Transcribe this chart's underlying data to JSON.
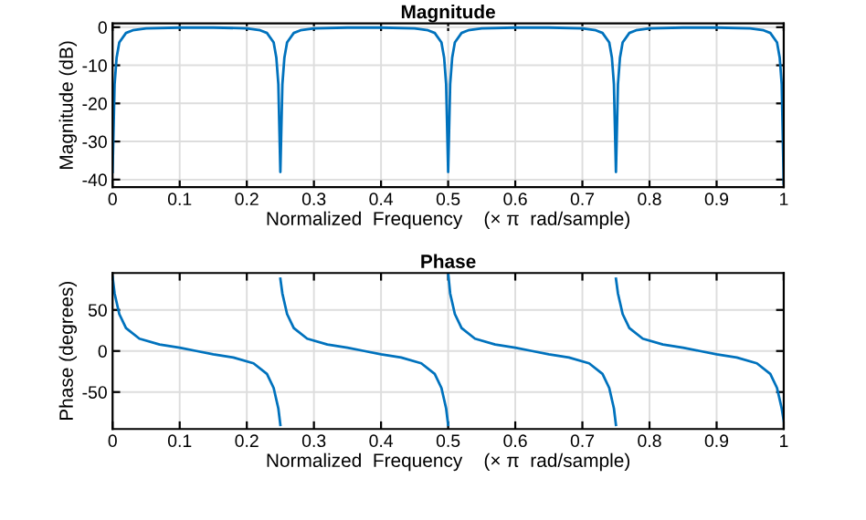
{
  "chart_data": [
    {
      "type": "line",
      "title": "Magnitude",
      "xlabel": "Normalized  Frequency    (× π  rad/sample)",
      "ylabel": "Magnitude (dB)",
      "grid": true,
      "xlim": [
        0,
        1
      ],
      "ylim": [
        -42,
        1
      ],
      "xticks": [
        0,
        0.1,
        0.2,
        0.3,
        0.4,
        0.5,
        0.6,
        0.7,
        0.8,
        0.9,
        1
      ],
      "yticks": [
        -40,
        -30,
        -20,
        -10,
        0
      ],
      "series": [
        {
          "color": "#0072bd",
          "x": [
            0,
            0.003,
            0.006,
            0.01,
            0.02,
            0.03,
            0.05,
            0.1,
            0.15,
            0.2,
            0.22,
            0.23,
            0.24,
            0.244,
            0.247,
            0.25,
            0.253,
            0.256,
            0.26,
            0.27,
            0.28,
            0.3,
            0.35,
            0.4,
            0.45,
            0.47,
            0.48,
            0.49,
            0.494,
            0.497,
            0.5,
            0.503,
            0.506,
            0.51,
            0.52,
            0.53,
            0.55,
            0.6,
            0.65,
            0.7,
            0.72,
            0.73,
            0.74,
            0.744,
            0.747,
            0.75,
            0.753,
            0.756,
            0.76,
            0.77,
            0.78,
            0.8,
            0.85,
            0.9,
            0.95,
            0.97,
            0.98,
            0.99,
            0.994,
            0.997,
            1
          ],
          "values": [
            -38,
            -15,
            -8,
            -4,
            -1.5,
            -0.8,
            -0.3,
            -0.1,
            -0.1,
            -0.3,
            -0.8,
            -1.5,
            -4,
            -8,
            -15,
            -38,
            -15,
            -8,
            -4,
            -1.5,
            -0.8,
            -0.3,
            -0.1,
            -0.1,
            -0.3,
            -0.8,
            -1.5,
            -4,
            -8,
            -15,
            -38,
            -15,
            -8,
            -4,
            -1.5,
            -0.8,
            -0.3,
            -0.1,
            -0.1,
            -0.3,
            -0.8,
            -1.5,
            -4,
            -8,
            -15,
            -38,
            -15,
            -8,
            -4,
            -1.5,
            -0.8,
            -0.3,
            -0.1,
            -0.1,
            -0.3,
            -0.8,
            -1.5,
            -4,
            -8,
            -15,
            -41
          ]
        }
      ]
    },
    {
      "type": "line",
      "title": "Phase",
      "xlabel": "Normalized  Frequency    (× π  rad/sample)",
      "ylabel": "Phase (degrees)",
      "grid": true,
      "xlim": [
        0,
        1
      ],
      "ylim": [
        -95,
        95
      ],
      "xticks": [
        0,
        0.1,
        0.2,
        0.3,
        0.4,
        0.5,
        0.6,
        0.7,
        0.8,
        0.9,
        1
      ],
      "yticks": [
        -50,
        0,
        50
      ],
      "series": [
        {
          "color": "#0072bd",
          "x": [
            0,
            0.003,
            0.01,
            0.02,
            0.04,
            0.07,
            0.1,
            0.125,
            0.15,
            0.18,
            0.21,
            0.23,
            0.24,
            0.247,
            0.25
          ],
          "values": [
            90,
            70,
            45,
            28,
            15,
            8,
            4,
            0,
            -4,
            -8,
            -15,
            -28,
            -45,
            -70,
            -90
          ]
        },
        {
          "color": "#0072bd",
          "x": [
            0.25,
            0.253,
            0.26,
            0.27,
            0.29,
            0.32,
            0.35,
            0.375,
            0.4,
            0.43,
            0.46,
            0.48,
            0.49,
            0.497,
            0.5
          ],
          "values": [
            88,
            70,
            45,
            28,
            15,
            8,
            4,
            0,
            -4,
            -8,
            -15,
            -28,
            -45,
            -70,
            -90
          ]
        },
        {
          "color": "#0072bd",
          "x": [
            0.5,
            0.503,
            0.51,
            0.52,
            0.54,
            0.57,
            0.6,
            0.625,
            0.65,
            0.68,
            0.71,
            0.73,
            0.74,
            0.747,
            0.75
          ],
          "values": [
            95,
            70,
            45,
            28,
            15,
            8,
            4,
            0,
            -4,
            -8,
            -15,
            -28,
            -45,
            -70,
            -90
          ]
        },
        {
          "color": "#0072bd",
          "x": [
            0.75,
            0.753,
            0.76,
            0.77,
            0.79,
            0.82,
            0.85,
            0.875,
            0.9,
            0.93,
            0.96,
            0.98,
            0.99,
            0.997,
            1
          ],
          "values": [
            88,
            70,
            45,
            28,
            15,
            8,
            4,
            0,
            -4,
            -8,
            -15,
            -28,
            -45,
            -70,
            -85
          ]
        }
      ]
    }
  ]
}
